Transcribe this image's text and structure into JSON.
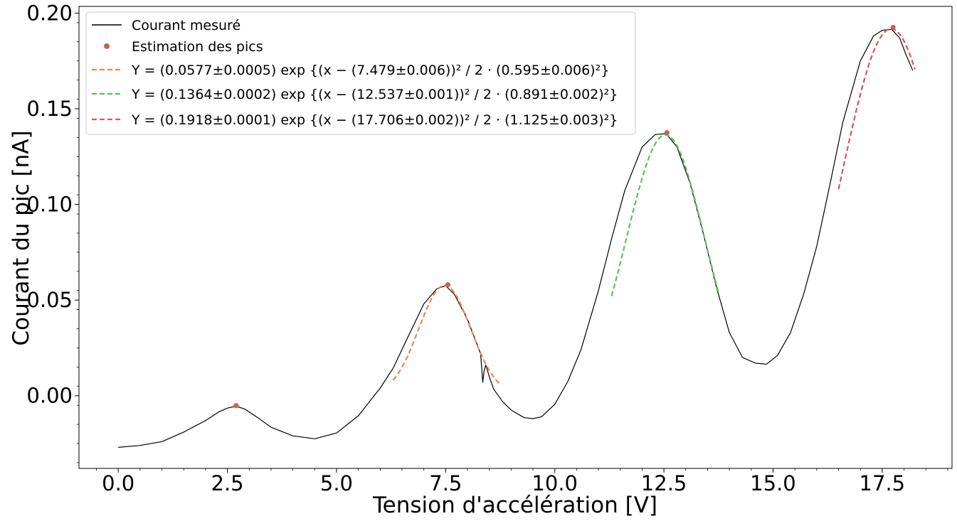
{
  "chart_data": {
    "type": "line",
    "title": "",
    "xlabel": "Tension d'accélération [V]",
    "ylabel": "Courant du pic [nA]",
    "xlim": [
      -0.9,
      19.1
    ],
    "ylim": [
      -0.038,
      0.2035
    ],
    "xticks": [
      0.0,
      2.5,
      5.0,
      7.5,
      10.0,
      12.5,
      15.0,
      17.5
    ],
    "xtick_labels": [
      "0.0",
      "2.5",
      "5.0",
      "7.5",
      "10.0",
      "12.5",
      "15.0",
      "17.5"
    ],
    "yticks": [
      0.0,
      0.05,
      0.1,
      0.15,
      0.2
    ],
    "ytick_labels": [
      "0.00",
      "0.05",
      "0.10",
      "0.15",
      "0.20"
    ],
    "grid": false,
    "legend_position": "top-left",
    "series": [
      {
        "name": "Courant mesuré",
        "kind": "line",
        "color": "#000000",
        "x": [
          0.0,
          0.5,
          1.0,
          1.5,
          2.0,
          2.3,
          2.5,
          2.7,
          2.9,
          3.2,
          3.5,
          4.0,
          4.5,
          5.0,
          5.5,
          6.0,
          6.3,
          6.6,
          7.0,
          7.3,
          7.5,
          7.7,
          8.0,
          8.2,
          8.3,
          8.35,
          8.38,
          8.42,
          8.46,
          8.52,
          8.6,
          8.8,
          9.0,
          9.3,
          9.5,
          9.7,
          10.0,
          10.3,
          10.6,
          11.0,
          11.3,
          11.6,
          12.0,
          12.3,
          12.55,
          12.8,
          13.1,
          13.4,
          13.7,
          14.0,
          14.3,
          14.6,
          14.85,
          15.1,
          15.4,
          15.7,
          16.0,
          16.3,
          16.6,
          17.0,
          17.3,
          17.5,
          17.72,
          17.9,
          18.05,
          18.2
        ],
        "y": [
          -0.027,
          -0.026,
          -0.024,
          -0.019,
          -0.013,
          -0.0085,
          -0.0065,
          -0.0055,
          -0.007,
          -0.0115,
          -0.0165,
          -0.021,
          -0.0225,
          -0.0195,
          -0.0105,
          0.004,
          0.0145,
          0.029,
          0.048,
          0.056,
          0.0575,
          0.053,
          0.04,
          0.028,
          0.022,
          0.007,
          0.013,
          0.016,
          0.013,
          0.0085,
          0.0035,
          -0.003,
          -0.0075,
          -0.0115,
          -0.012,
          -0.011,
          -0.0045,
          0.0075,
          0.024,
          0.055,
          0.082,
          0.107,
          0.13,
          0.1365,
          0.137,
          0.13,
          0.111,
          0.085,
          0.057,
          0.033,
          0.02,
          0.017,
          0.0165,
          0.021,
          0.033,
          0.053,
          0.078,
          0.11,
          0.143,
          0.175,
          0.188,
          0.191,
          0.1915,
          0.187,
          0.178,
          0.17
        ]
      },
      {
        "name": "Estimation des pics",
        "kind": "scatter",
        "color": "#cd5c5c",
        "x": [
          2.7,
          7.55,
          12.57,
          17.75
        ],
        "y": [
          -0.0052,
          0.058,
          0.1375,
          0.1925
        ]
      },
      {
        "name": "$Y = (0.0577{\\pm}0.0005)\\ \\exp\\{(x-(7.479{\\pm}0.006))^2\\ /\\ 2\\cdot(0.595{\\pm}0.006)^2\\}$",
        "kind": "gaussian-fit",
        "color": "#f4834a",
        "amplitude": 0.0577,
        "center": 7.479,
        "sigma": 0.595,
        "x_range": [
          6.3,
          8.75
        ]
      },
      {
        "name": "$Y = (0.1364{\\pm}0.0002)\\ \\exp\\{(x-(12.537{\\pm}0.001))^2\\ /\\ 2\\cdot(0.891{\\pm}0.002)^2\\}$",
        "kind": "gaussian-fit",
        "color": "#55c455",
        "amplitude": 0.1364,
        "center": 12.537,
        "sigma": 0.891,
        "x_range": [
          11.3,
          13.75
        ]
      },
      {
        "name": "$Y = (0.1918{\\pm}0.0001)\\ \\exp\\{(x-(17.706{\\pm}0.002))^2\\ /\\ 2\\cdot(1.125{\\pm}0.003)^2\\}$",
        "kind": "gaussian-fit",
        "color": "#d9545a",
        "amplitude": 0.1918,
        "center": 17.706,
        "sigma": 1.125,
        "x_range": [
          16.5,
          18.25
        ]
      }
    ],
    "legend": [
      {
        "type": "line",
        "color": "#000000",
        "label": "Courant mesuré"
      },
      {
        "type": "marker",
        "color": "#cd5c5c",
        "label": "Estimation des pics"
      },
      {
        "type": "dashed",
        "color": "#f4834a",
        "label": "Y = (0.0577±0.0005) exp {(x − (7.479±0.006))² / 2 · (0.595±0.006)²}"
      },
      {
        "type": "dashed",
        "color": "#55c455",
        "label": "Y = (0.1364±0.0002) exp {(x − (12.537±0.001))² / 2 · (0.891±0.002)²}"
      },
      {
        "type": "dashed",
        "color": "#d9545a",
        "label": "Y = (0.1918±0.0001) exp {(x − (17.706±0.002))² / 2 · (1.125±0.003)²}"
      }
    ]
  }
}
